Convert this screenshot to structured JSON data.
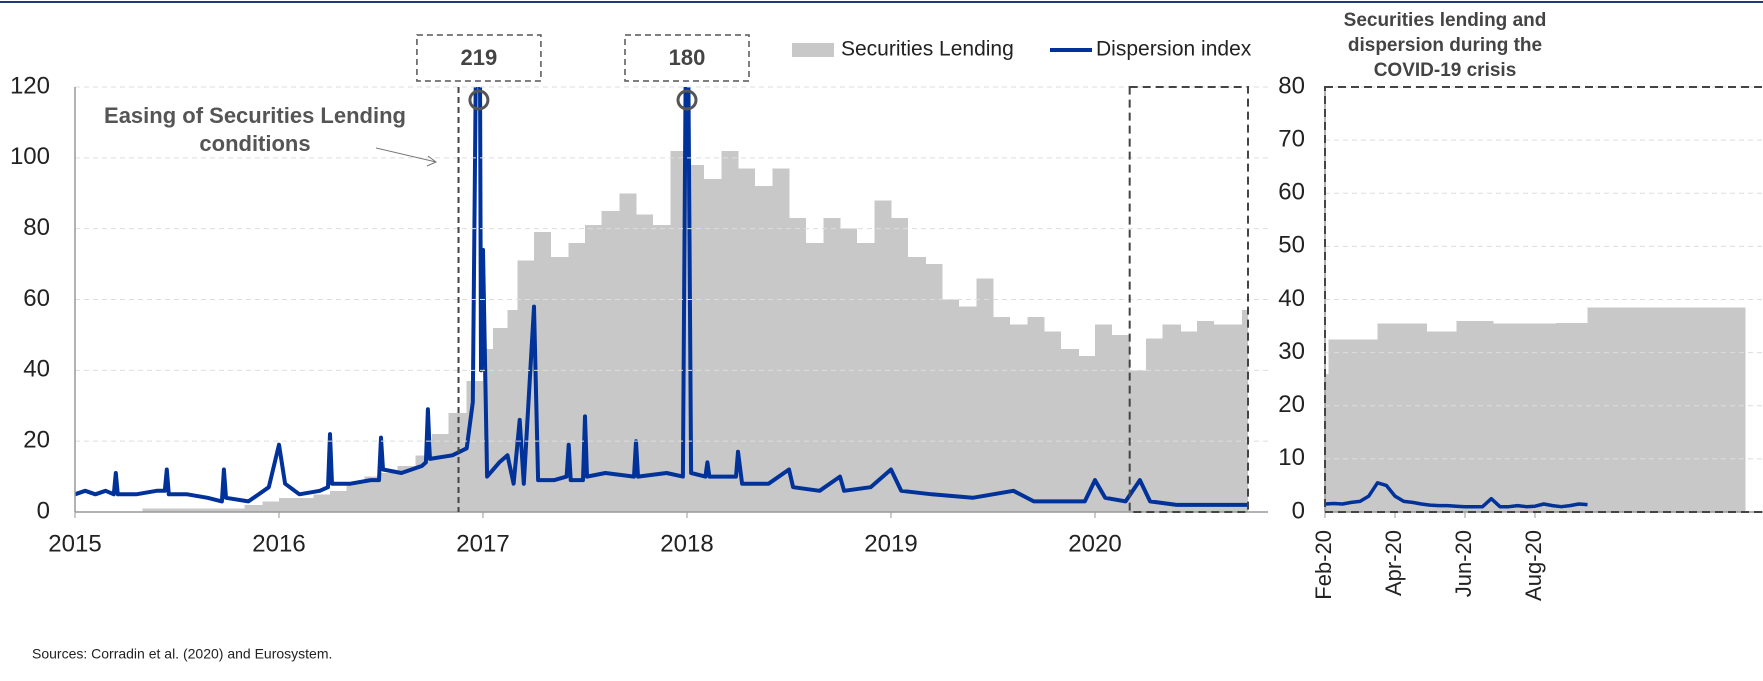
{
  "chart_data": [
    {
      "type": "combo",
      "xlim": [
        2015,
        2020.75
      ],
      "xticks": [
        2015,
        2016,
        2017,
        2018,
        2019,
        2020
      ],
      "ylim": [
        0,
        120
      ],
      "yticks": [
        0,
        20,
        40,
        60,
        80,
        100,
        120
      ],
      "grid": true,
      "legend": "top",
      "series": [
        {
          "name": "Securities Lending",
          "color": "#c8c8c8",
          "kind": "step_area",
          "x": [
            2015.33,
            2015.42,
            2015.5,
            2015.58,
            2015.67,
            2015.75,
            2015.83,
            2015.92,
            2016.0,
            2016.08,
            2016.17,
            2016.25,
            2016.33,
            2016.42,
            2016.5,
            2016.58,
            2016.67,
            2016.75,
            2016.83,
            2016.92,
            2017.0,
            2017.05,
            2017.12,
            2017.17,
            2017.25,
            2017.33,
            2017.42,
            2017.5,
            2017.58,
            2017.67,
            2017.75,
            2017.83,
            2017.92,
            2018.0,
            2018.08,
            2018.17,
            2018.25,
            2018.33,
            2018.42,
            2018.5,
            2018.58,
            2018.67,
            2018.75,
            2018.83,
            2018.92,
            2019.0,
            2019.08,
            2019.17,
            2019.25,
            2019.33,
            2019.42,
            2019.5,
            2019.58,
            2019.67,
            2019.75,
            2019.83,
            2019.92,
            2020.0,
            2020.08,
            2020.17,
            2020.25,
            2020.33,
            2020.42,
            2020.5,
            2020.58,
            2020.67,
            2020.72
          ],
          "values": [
            1,
            1,
            1,
            1,
            1,
            1,
            2,
            3,
            4,
            4,
            5,
            6,
            8,
            10,
            11,
            13,
            16,
            22,
            28,
            37,
            46,
            52,
            57,
            71,
            79,
            72,
            76,
            81,
            85,
            90,
            84,
            81,
            102,
            98,
            94,
            102,
            97,
            92,
            97,
            83,
            76,
            83,
            80,
            76,
            88,
            83,
            72,
            70,
            60,
            58,
            66,
            55,
            53,
            55,
            51,
            46,
            44,
            53,
            50,
            40,
            49,
            53,
            51,
            54,
            53,
            53,
            57
          ]
        },
        {
          "name": "Dispersion index",
          "color": "#003299",
          "kind": "line",
          "x": [
            2015.0,
            2015.05,
            2015.1,
            2015.15,
            2015.19,
            2015.2,
            2015.21,
            2015.3,
            2015.4,
            2015.44,
            2015.45,
            2015.46,
            2015.55,
            2015.65,
            2015.72,
            2015.73,
            2015.74,
            2015.85,
            2015.95,
            2016.0,
            2016.03,
            2016.1,
            2016.2,
            2016.24,
            2016.25,
            2016.26,
            2016.35,
            2016.45,
            2016.49,
            2016.5,
            2016.51,
            2016.6,
            2016.7,
            2016.72,
            2016.73,
            2016.74,
            2016.85,
            2016.92,
            2016.95,
            2016.98,
            2016.99,
            2017.0,
            2017.02,
            2017.08,
            2017.12,
            2017.15,
            2017.18,
            2017.2,
            2017.25,
            2017.27,
            2017.35,
            2017.41,
            2017.42,
            2017.43,
            2017.49,
            2017.5,
            2017.51,
            2017.6,
            2017.74,
            2017.75,
            2017.76,
            2017.9,
            2017.98,
            2018.0,
            2018.02,
            2018.09,
            2018.1,
            2018.11,
            2018.24,
            2018.25,
            2018.27,
            2018.4,
            2018.5,
            2018.52,
            2018.65,
            2018.75,
            2018.77,
            2018.9,
            2019.0,
            2019.05,
            2019.2,
            2019.4,
            2019.5,
            2019.6,
            2019.7,
            2019.85,
            2019.95,
            2020.0,
            2020.05,
            2020.15,
            2020.22,
            2020.27,
            2020.4,
            2020.55,
            2020.75
          ],
          "values": [
            5,
            6,
            5,
            6,
            5,
            11,
            5,
            5,
            6,
            6,
            12,
            5,
            5,
            4,
            3,
            12,
            4,
            3,
            7,
            19,
            8,
            5,
            6,
            7,
            22,
            8,
            8,
            9,
            9,
            21,
            12,
            11,
            13,
            14,
            29,
            15,
            16,
            18,
            31,
            219,
            40,
            74,
            10,
            14,
            16,
            8,
            26,
            8,
            58,
            9,
            9,
            10,
            19,
            9,
            9,
            27,
            10,
            11,
            10,
            20,
            10,
            11,
            10,
            180,
            11,
            10,
            14,
            10,
            10,
            17,
            8,
            8,
            12,
            7,
            6,
            10,
            6,
            7,
            12,
            6,
            5,
            4,
            5,
            6,
            3,
            3,
            3,
            9,
            4,
            3,
            9,
            3,
            2,
            2,
            2
          ]
        }
      ],
      "annotation": {
        "text": "Easing of Securities Lending conditions",
        "x": 2016.88
      },
      "highlight": [
        2020.17,
        2020.75
      ],
      "peaks": [
        39,
        63
      ],
      "source": "Sources: Corradin et al. (2020) and Eurosystem."
    },
    {
      "type": "combo",
      "title": "Securities lending and dispersion during the COVID-19 crisis",
      "xlim": [
        0,
        12
      ],
      "xticks": [
        {
          "value": 0,
          "label": "Feb-20"
        },
        {
          "value": 2,
          "label": "Apr-20"
        },
        {
          "value": 4,
          "label": "Jun-20"
        },
        {
          "value": 6,
          "label": "Aug-20"
        }
      ],
      "ylim": [
        0,
        80
      ],
      "yticks": [
        0,
        10,
        20,
        30,
        40,
        50,
        60,
        70,
        80
      ],
      "grid": true,
      "series": [
        {
          "color": "#c8c8c8",
          "kind": "step_area",
          "x": [
            0,
            0.1,
            0.75,
            1.5,
            2.0,
            2.9,
            3.75,
            4.8,
            6.6,
            7.5
          ],
          "values": [
            26,
            32.5,
            32.5,
            35.5,
            35.5,
            34,
            36,
            35.5,
            35.6,
            38.5
          ]
        },
        {
          "color": "#003299",
          "kind": "line",
          "x": [
            0,
            0.25,
            0.5,
            0.75,
            1,
            1.25,
            1.5,
            1.75,
            2,
            2.25,
            2.5,
            2.75,
            3,
            3.25,
            3.5,
            3.75,
            4,
            4.25,
            4.5,
            4.75,
            5,
            5.25,
            5.5,
            5.75,
            6,
            6.25,
            6.5,
            6.75,
            7,
            7.25,
            7.5
          ],
          "values": [
            1.5,
            1.6,
            1.5,
            1.8,
            2,
            3,
            5.5,
            5,
            3,
            2,
            1.8,
            1.5,
            1.3,
            1.2,
            1.2,
            1.1,
            1,
            1,
            1,
            2.5,
            1,
            1,
            1.2,
            1,
            1.1,
            1.5,
            1.2,
            1,
            1.2,
            1.5,
            1.4
          ]
        }
      ]
    }
  ]
}
